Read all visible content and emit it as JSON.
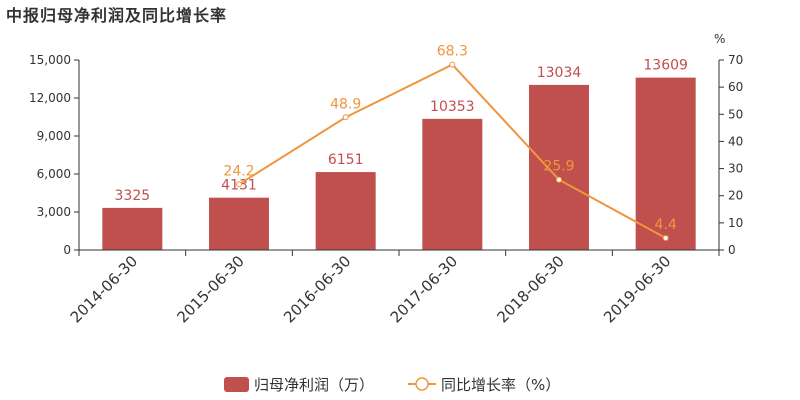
{
  "title": "中报归母净利润及同比增长率",
  "chart_data": {
    "type": "bar",
    "title": "中报归母净利润及同比增长率",
    "categories": [
      "2014-06-30",
      "2015-06-30",
      "2016-06-30",
      "2017-06-30",
      "2018-06-30",
      "2019-06-30"
    ],
    "series": [
      {
        "name": "归母净利润（万）",
        "type": "bar",
        "axis": "left",
        "values": [
          3325,
          4131,
          6151,
          10353,
          13034,
          13609
        ],
        "color": "#c0504d"
      },
      {
        "name": "同比增长率（%）",
        "type": "line",
        "axis": "right",
        "values": [
          null,
          24.2,
          48.9,
          68.3,
          25.9,
          4.4
        ],
        "color": "#f0953f"
      }
    ],
    "y_left": {
      "ylim": [
        0,
        15000
      ],
      "ticks": [
        "0",
        "3,000",
        "6,000",
        "9,000",
        "12,000",
        "15,000"
      ]
    },
    "y_right": {
      "ylim": [
        0,
        70
      ],
      "unit": "%",
      "ticks": [
        "0",
        "10",
        "20",
        "30",
        "40",
        "50",
        "60",
        "70"
      ]
    },
    "legend_position": "bottom-center"
  }
}
